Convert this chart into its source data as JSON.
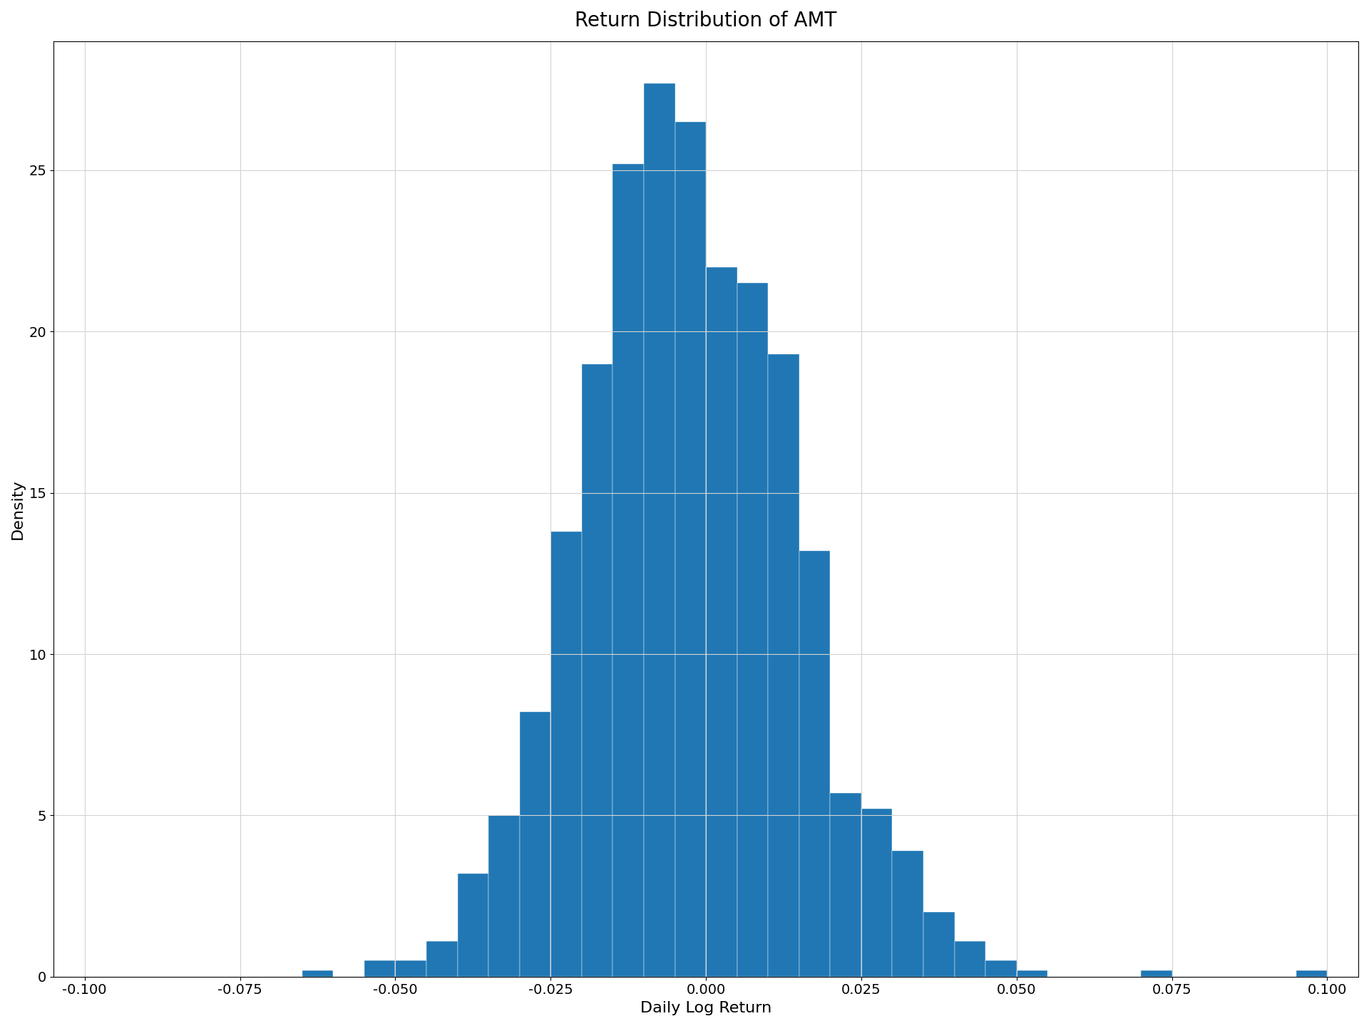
{
  "title": "Return Distribution of AMT",
  "xlabel": "Daily Log Return",
  "ylabel": "Density",
  "bar_color": "#2077b4",
  "xlim": [
    -0.105,
    0.105
  ],
  "ylim": [
    0,
    29
  ],
  "xticks": [
    -0.1,
    -0.075,
    -0.05,
    -0.025,
    0.0,
    0.025,
    0.05,
    0.075,
    0.1
  ],
  "yticks": [
    0,
    5,
    10,
    15,
    20,
    25
  ],
  "bin_width": 0.005,
  "bin_starts": [
    -0.1,
    -0.095,
    -0.09,
    -0.085,
    -0.08,
    -0.075,
    -0.07,
    -0.065,
    -0.06,
    -0.055,
    -0.05,
    -0.045,
    -0.04,
    -0.035,
    -0.03,
    -0.025,
    -0.02,
    -0.015,
    -0.01,
    -0.005,
    0.0,
    0.005,
    0.01,
    0.015,
    0.02,
    0.025,
    0.03,
    0.035,
    0.04,
    0.045,
    0.05,
    0.055,
    0.06,
    0.065,
    0.07,
    0.075,
    0.08,
    0.085,
    0.09,
    0.095,
    0.1
  ],
  "densities": [
    0.0,
    0.0,
    0.0,
    0.0,
    0.0,
    0.0,
    0.0,
    0.2,
    0.0,
    0.5,
    0.5,
    1.1,
    3.2,
    5.0,
    8.2,
    13.8,
    19.0,
    25.2,
    27.7,
    26.5,
    22.0,
    21.5,
    19.3,
    13.2,
    5.7,
    5.2,
    3.9,
    2.0,
    1.1,
    0.5,
    0.2,
    0.0,
    0.0,
    0.0,
    0.2,
    0.0,
    0.0,
    0.0,
    0.0,
    0.2,
    0.0
  ],
  "title_fontsize": 20,
  "label_fontsize": 16,
  "tick_fontsize": 14,
  "figure_facecolor": "white",
  "axes_facecolor": "white"
}
